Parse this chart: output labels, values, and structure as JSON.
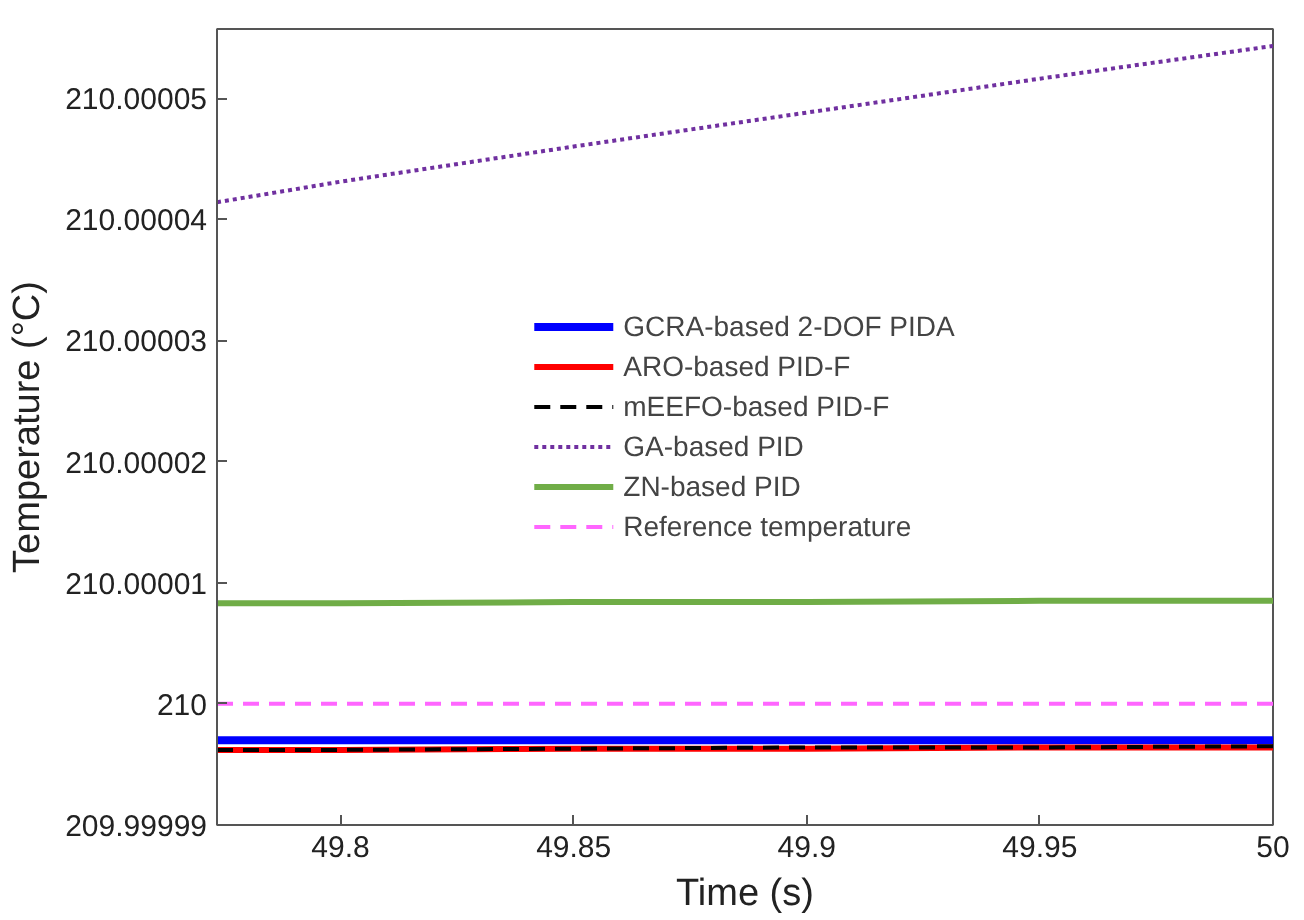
{
  "chart_data": {
    "type": "line",
    "xlabel": "Time (s)",
    "ylabel": "Temperature (°C)",
    "xlim": [
      49.7735,
      50
    ],
    "xticks": [
      49.8,
      49.85,
      49.9,
      49.95,
      50
    ],
    "ylim": [
      209.99999,
      210.0000557
    ],
    "yticks": [
      {
        "value": 209.99999,
        "label": "209.99999"
      },
      {
        "value": 210,
        "label": "210"
      },
      {
        "value": 210.00001,
        "label": "210.00001"
      },
      {
        "value": 210.00002,
        "label": "210.00002"
      },
      {
        "value": 210.00003,
        "label": "210.00003"
      },
      {
        "value": 210.00004,
        "label": "210.00004"
      },
      {
        "value": 210.00005,
        "label": "210.00005"
      }
    ],
    "grid": false,
    "legend": "center",
    "x": [
      49.7735,
      49.8,
      49.85,
      49.9,
      49.95,
      50
    ],
    "series": [
      {
        "name": "GCRA-based 2-DOF PIDA",
        "color": "#0000ff",
        "line_style": "solid",
        "values": [
          209.999997,
          209.999997,
          209.999997,
          209.999997,
          209.999997,
          209.999997
        ]
      },
      {
        "name": "ARO-based PID-F",
        "color": "#ff0000",
        "line_style": "solid",
        "values": [
          209.9999962,
          209.9999962,
          209.9999963,
          209.9999963,
          209.9999964,
          209.9999964
        ]
      },
      {
        "name": "mEEFO-based PID-F",
        "color": "#000000",
        "line_style": "dashed",
        "values": [
          209.9999962,
          209.9999962,
          209.9999963,
          209.9999964,
          209.9999964,
          209.9999965
        ]
      },
      {
        "name": "GA-based PID",
        "color": "#7030a0",
        "line_style": "dotted",
        "values": [
          210.0000414,
          210.0000431,
          210.000046,
          210.0000488,
          210.0000516,
          210.0000543
        ]
      },
      {
        "name": "ZN-based PID",
        "color": "#70ad47",
        "line_style": "solid",
        "values": [
          210.0000083,
          210.0000083,
          210.0000084,
          210.0000084,
          210.0000085,
          210.0000085
        ]
      },
      {
        "name": "Reference temperature",
        "color": "#ff66ff",
        "line_style": "dashed",
        "values": [
          210,
          210,
          210,
          210,
          210,
          210
        ]
      }
    ]
  }
}
